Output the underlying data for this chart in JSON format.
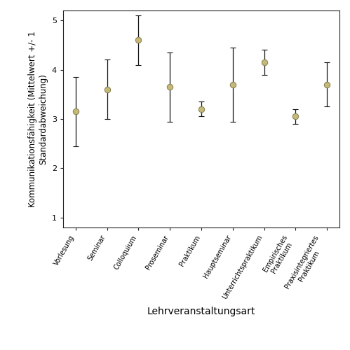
{
  "categories": [
    "Vorlesung",
    "Seminar",
    "Colloquium",
    "Proseminar",
    "Praktikum",
    "Hauptseminar",
    "Unterrichtspraktikum",
    "Empirisches\nPraktikum",
    "Praxisintegriertes\nPraktikum"
  ],
  "means": [
    3.15,
    3.6,
    4.6,
    3.65,
    3.2,
    3.7,
    4.15,
    3.05,
    3.7
  ],
  "errors": [
    0.7,
    0.6,
    0.5,
    0.7,
    0.15,
    0.75,
    0.25,
    0.15,
    0.45
  ],
  "ylabel": "Kommunikationsfähigkeit (Mittelwert +/- 1\nStandardabweichung)",
  "xlabel": "Lehrveranstaltungsart",
  "ylim": [
    0.8,
    5.2
  ],
  "yticks": [
    1,
    2,
    3,
    4,
    5
  ],
  "marker_color": "#c8b878",
  "marker_edge_color": "#888855",
  "line_color": "#111111",
  "bg_color": "#ffffff",
  "marker_size": 6,
  "capsize": 3,
  "linewidth": 0.9,
  "xlabel_fontsize": 10,
  "ylabel_fontsize": 8.5,
  "ytick_fontsize": 8,
  "xtick_fontsize": 7,
  "xtick_rotation": 60
}
